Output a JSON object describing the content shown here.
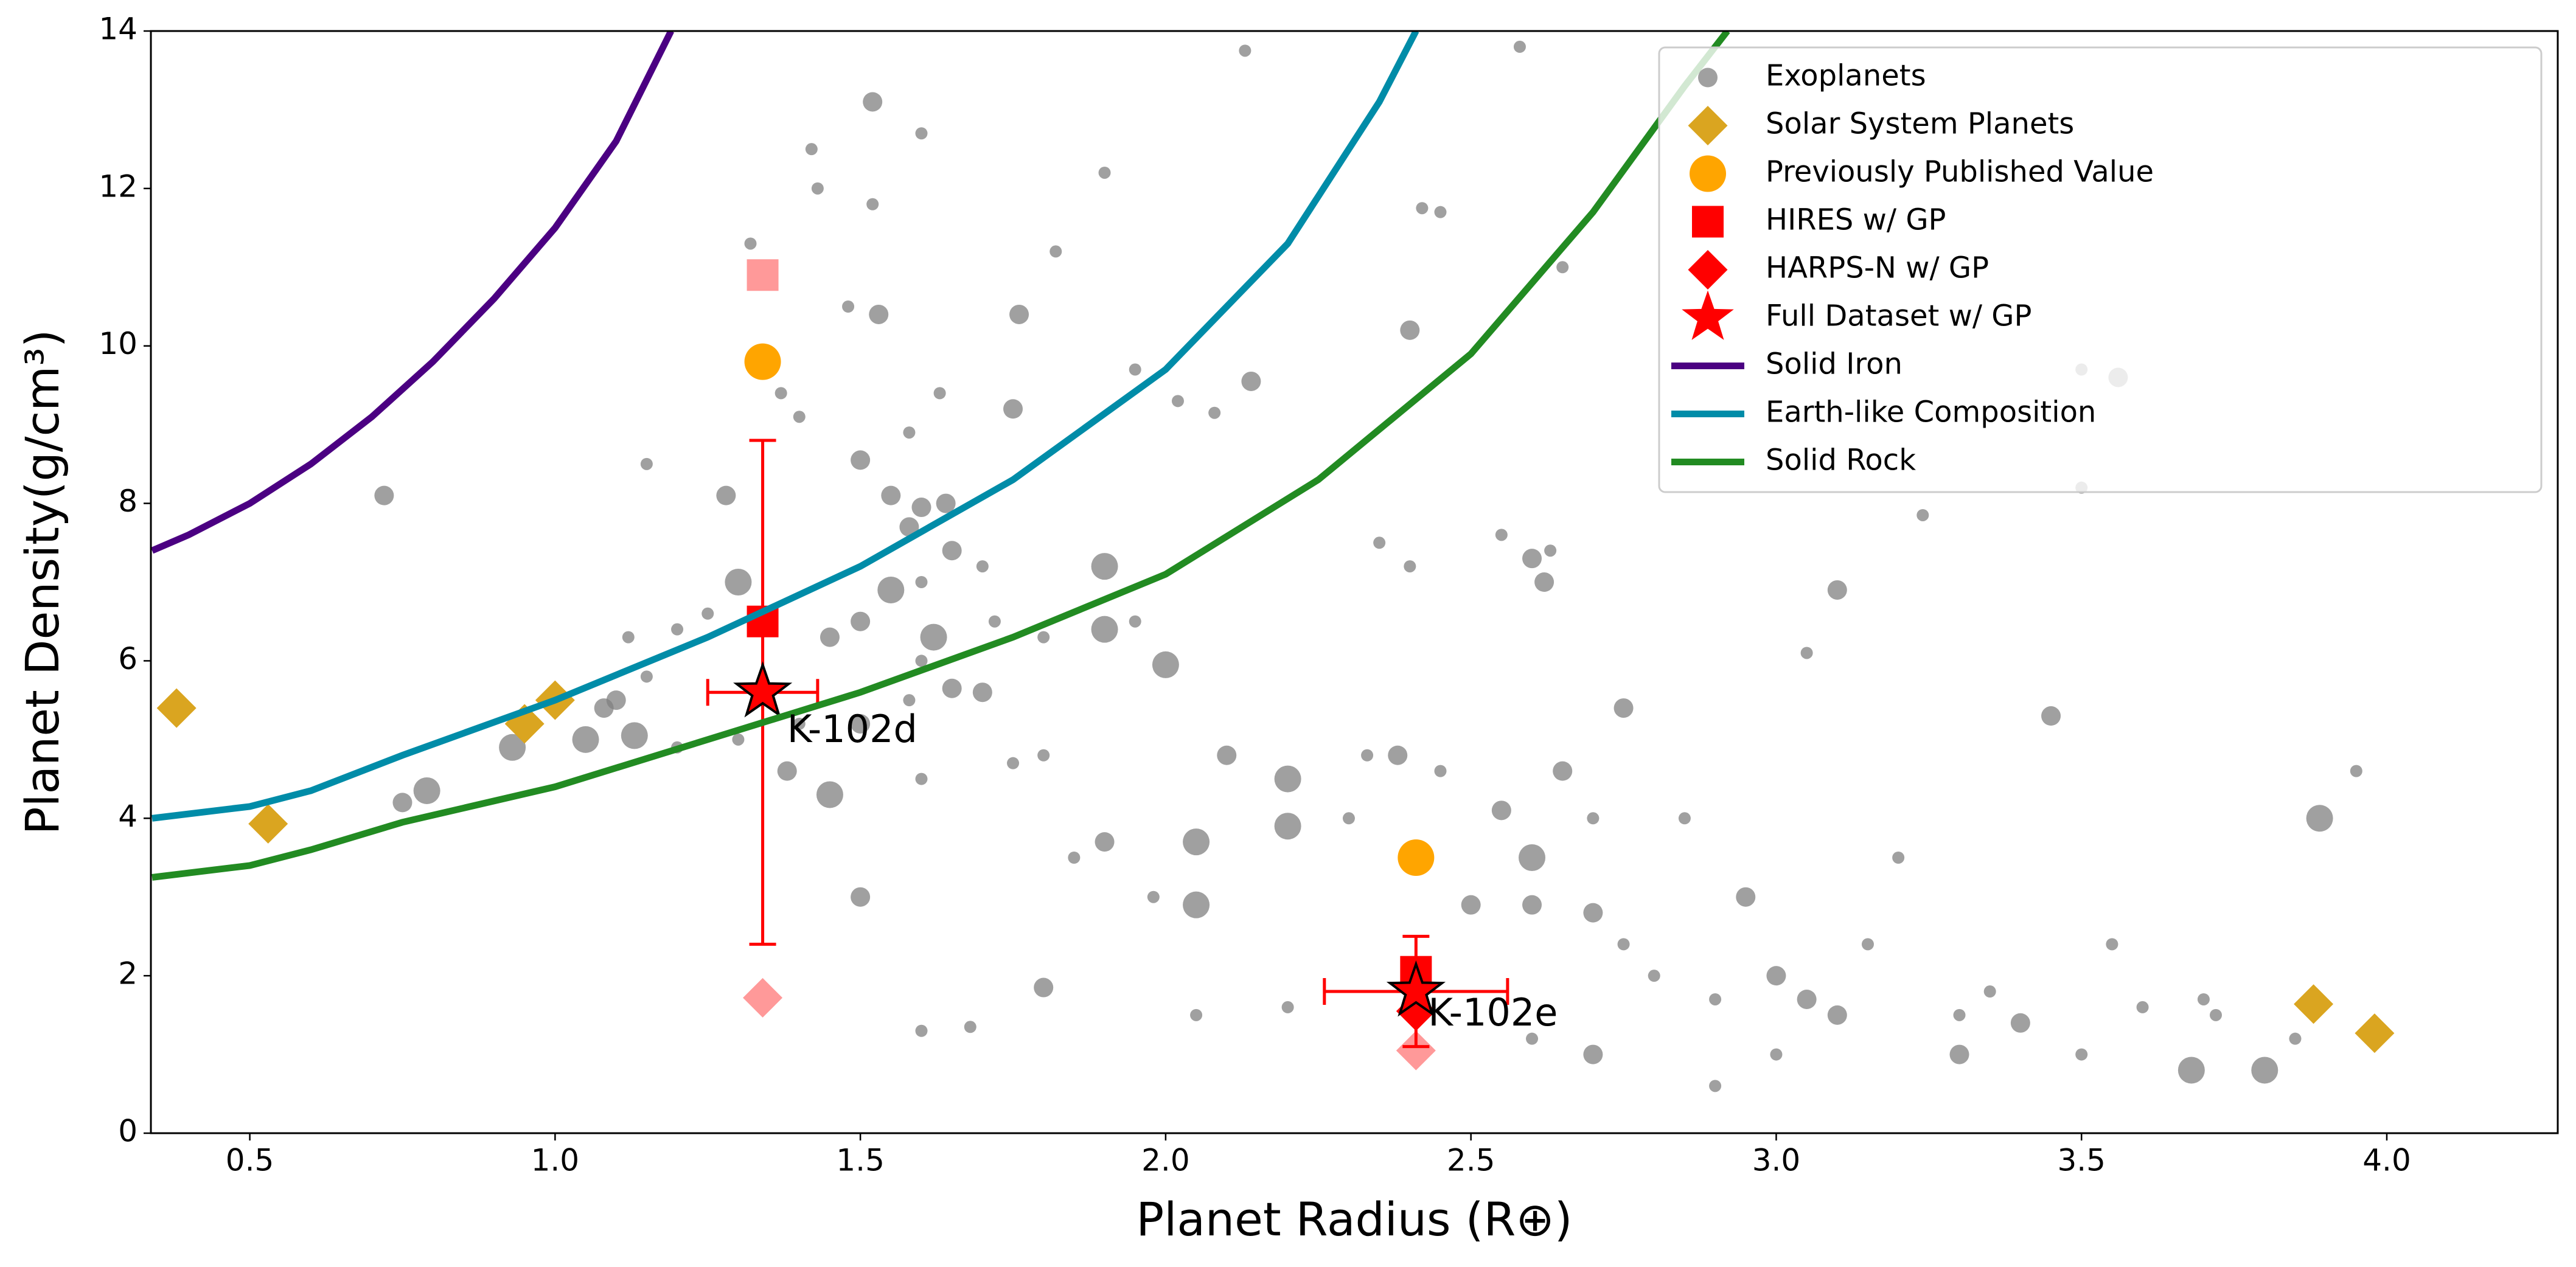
{
  "chart_data": {
    "type": "scatter",
    "xlabel": "Planet Radius (R⊕)",
    "ylabel": "Planet Density(g/cm³)",
    "xlim": [
      0.338,
      4.28
    ],
    "ylim": [
      0,
      14
    ],
    "xticks": [
      0.5,
      {
        "value": 1,
        "label": "1.0"
      },
      1.5,
      {
        "value": 2,
        "label": "2.0"
      },
      2.5,
      {
        "value": 3,
        "label": "3.0"
      },
      3.5,
      {
        "value": 4,
        "label": "4.0"
      }
    ],
    "yticks": [
      0,
      2,
      4,
      6,
      8,
      10,
      12,
      14
    ],
    "legend": "upper right",
    "series": [
      {
        "name": "Exoplanets",
        "type": "scatter",
        "marker": "circle",
        "color": "#808080",
        "alpha": 0.75,
        "x": [
          1.52,
          1.6,
          1.42,
          1.43,
          1.52,
          1.32,
          1.82,
          1.9,
          1.76,
          1.53,
          1.48,
          1.37,
          1.63,
          1.75,
          1.58,
          1.4,
          2.14,
          2.02,
          2.08,
          2.4,
          2.65,
          2.45,
          1.28,
          1.15,
          0.72,
          1.5,
          1.55,
          1.6,
          1.64,
          1.58,
          1.65,
          1.7,
          1.9,
          1.6,
          1.55,
          1.5,
          1.45,
          1.62,
          1.72,
          1.8,
          1.9,
          1.95,
          1.3,
          1.25,
          1.2,
          1.12,
          1.15,
          1.1,
          1.08,
          1.13,
          1.05,
          0.93,
          0.79,
          0.75,
          1.2,
          1.3,
          1.4,
          1.5,
          1.58,
          1.65,
          1.7,
          1.6,
          1.38,
          1.45,
          1.6,
          1.75,
          1.8,
          1.85,
          1.9,
          1.98,
          2.05,
          2.05,
          2.0,
          2.2,
          2.1,
          2.2,
          2.3,
          2.33,
          2.38,
          2.45,
          2.55,
          2.6,
          2.5,
          2.6,
          2.7,
          2.75,
          2.8,
          2.9,
          2.65,
          2.75,
          2.7,
          2.85,
          2.55,
          2.6,
          2.62,
          2.63,
          2.4,
          2.35,
          2.95,
          3.0,
          3.05,
          3.1,
          3.05,
          3.1,
          3.2,
          3.15,
          3.3,
          3.3,
          3.35,
          3.4,
          3.45,
          3.5,
          3.56,
          3.5,
          3.55,
          3.6,
          3.68,
          3.7,
          3.72,
          3.8,
          3.85,
          3.89,
          3.95,
          3.0,
          2.9,
          2.7,
          2.6,
          2.2,
          2.05,
          1.6,
          1.68,
          1.8,
          1.5,
          3.24,
          3.5,
          2.42,
          2.13,
          2.58,
          1.95
        ],
        "values": [
          13.1,
          12.7,
          12.5,
          12.0,
          11.8,
          11.3,
          11.2,
          12.2,
          10.4,
          10.4,
          10.5,
          9.4,
          9.4,
          9.2,
          8.9,
          9.1,
          9.55,
          9.3,
          9.15,
          10.2,
          11.0,
          11.7,
          8.1,
          8.5,
          8.1,
          8.55,
          8.1,
          7.95,
          8.0,
          7.7,
          7.4,
          7.2,
          7.2,
          7.0,
          6.9,
          6.5,
          6.3,
          6.3,
          6.5,
          6.3,
          6.4,
          6.5,
          7.0,
          6.6,
          6.4,
          6.3,
          5.8,
          5.5,
          5.4,
          5.05,
          5.0,
          4.9,
          4.35,
          4.2,
          4.9,
          5.0,
          5.2,
          5.2,
          5.5,
          5.65,
          5.6,
          6.0,
          4.6,
          4.3,
          4.5,
          4.7,
          4.8,
          3.5,
          3.7,
          3.0,
          3.7,
          2.9,
          5.95,
          4.5,
          4.8,
          3.9,
          4.0,
          4.8,
          4.8,
          4.6,
          4.1,
          3.5,
          2.9,
          2.9,
          2.8,
          2.4,
          2.0,
          1.7,
          4.6,
          5.4,
          4.0,
          4.0,
          7.6,
          7.3,
          7.0,
          7.4,
          7.2,
          7.5,
          3.0,
          2.0,
          1.7,
          1.5,
          6.1,
          6.9,
          3.5,
          2.4,
          1.5,
          1.0,
          1.8,
          1.4,
          5.3,
          9.7,
          9.6,
          1.0,
          2.4,
          1.6,
          0.8,
          1.7,
          1.5,
          0.8,
          1.2,
          4.0,
          4.6,
          1.0,
          0.6,
          1.0,
          1.2,
          1.6,
          1.5,
          1.3,
          1.35,
          1.85,
          3.0,
          7.85,
          8.2,
          11.75,
          13.75,
          13.8,
          9.7
        ],
        "sizes": [
          2,
          1,
          1,
          1,
          1,
          1,
          1,
          1,
          2,
          2,
          1,
          1,
          1,
          2,
          1,
          1,
          2,
          1,
          1,
          2,
          1,
          1,
          2,
          1,
          2,
          2,
          2,
          2,
          2,
          2,
          2,
          1,
          3,
          1,
          3,
          2,
          2,
          3,
          1,
          1,
          3,
          1,
          3,
          1,
          1,
          1,
          1,
          2,
          2,
          3,
          3,
          3,
          3,
          2,
          1,
          1,
          1,
          2,
          1,
          2,
          2,
          1,
          2,
          3,
          1,
          1,
          1,
          1,
          2,
          1,
          3,
          3,
          3,
          3,
          2,
          3,
          1,
          1,
          2,
          1,
          2,
          3,
          2,
          2,
          2,
          1,
          1,
          1,
          2,
          2,
          1,
          1,
          1,
          2,
          2,
          1,
          1,
          1,
          2,
          2,
          2,
          2,
          1,
          2,
          1,
          1,
          1,
          2,
          1,
          2,
          2,
          1,
          2,
          1,
          1,
          1,
          3,
          1,
          1,
          3,
          1,
          3,
          1,
          1,
          1,
          2,
          1,
          1,
          1,
          1,
          1,
          2,
          2,
          1,
          1,
          1,
          1,
          1,
          1
        ]
      },
      {
        "name": "Solar System Planets",
        "type": "scatter",
        "marker": "diamond",
        "color": "#daa520",
        "x": [
          0.38,
          0.53,
          0.95,
          1.0,
          3.88,
          3.98
        ],
        "values": [
          5.4,
          3.93,
          5.2,
          5.5,
          1.64,
          1.27
        ]
      },
      {
        "name": "Previously Published Value",
        "type": "scatter",
        "marker": "circle",
        "color": "#ffa500",
        "x": [
          1.34,
          2.41
        ],
        "values": [
          9.8,
          3.5
        ]
      },
      {
        "type": "scatter",
        "marker": "square",
        "color": "#ff0000",
        "alpha": 0.4,
        "x": [
          1.34
        ],
        "values": [
          10.9
        ]
      },
      {
        "type": "scatter",
        "marker": "diamond",
        "color": "#ff0000",
        "alpha": 0.4,
        "x": [
          1.34,
          2.41
        ],
        "values": [
          1.72,
          1.05
        ]
      },
      {
        "name": "HIRES w/ GP",
        "type": "scatter",
        "marker": "square",
        "color": "#ff0000",
        "x": [
          1.34,
          2.41
        ],
        "values": [
          6.5,
          2.05
        ]
      },
      {
        "name": "HARPS-N w/ GP",
        "type": "scatter",
        "marker": "diamond",
        "color": "#ff0000",
        "x": [
          2.41
        ],
        "values": [
          1.55
        ]
      },
      {
        "name": "Full Dataset w/ GP",
        "type": "scatter",
        "marker": "star",
        "color": "#ff0000",
        "x": [
          1.34,
          2.41
        ],
        "values": [
          5.6,
          1.8
        ],
        "xerr": [
          0.09,
          0.15
        ],
        "yerr": [
          3.2,
          0.7
        ]
      },
      {
        "name": "Solid Iron",
        "type": "line",
        "color": "#4b0082",
        "x": [
          0.34,
          0.4,
          0.5,
          0.6,
          0.7,
          0.8,
          0.9,
          1.0,
          1.1,
          1.19
        ],
        "values": [
          7.4,
          7.6,
          8.0,
          8.5,
          9.1,
          9.8,
          10.6,
          11.5,
          12.6,
          14
        ]
      },
      {
        "name": "Earth-like Composition",
        "type": "line",
        "color": "#008ca8",
        "x": [
          0.34,
          0.5,
          0.6,
          0.75,
          1.0,
          1.25,
          1.5,
          1.75,
          2.0,
          2.2,
          2.35,
          2.41
        ],
        "values": [
          4.0,
          4.15,
          4.35,
          4.8,
          5.5,
          6.3,
          7.2,
          8.3,
          9.7,
          11.3,
          13.1,
          14
        ]
      },
      {
        "name": "Solid Rock",
        "type": "line",
        "color": "#228b22",
        "x": [
          0.34,
          0.5,
          0.6,
          0.75,
          1.0,
          1.25,
          1.5,
          1.75,
          2.0,
          2.25,
          2.5,
          2.7,
          2.85,
          2.92
        ],
        "values": [
          3.25,
          3.4,
          3.6,
          3.95,
          4.4,
          5.0,
          5.6,
          6.3,
          7.1,
          8.3,
          9.9,
          11.7,
          13.3,
          14
        ]
      }
    ],
    "annotations": [
      {
        "text": "K-102d",
        "x": 1.38,
        "y": 5.1
      },
      {
        "text": "K-102e",
        "x": 2.43,
        "y": 1.5
      }
    ]
  }
}
